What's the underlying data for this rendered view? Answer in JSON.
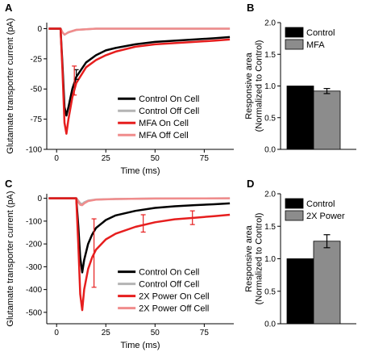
{
  "chart_data": [
    {
      "panel": "A",
      "type": "line",
      "xlabel": "Time (ms)",
      "ylabel": "Glutamate transporter current (pA)",
      "xlim": [
        -5,
        90
      ],
      "ylim": [
        -100,
        5
      ],
      "xticks": [
        "0",
        "25",
        "50",
        "75"
      ],
      "xtick_values": [
        0,
        25,
        50,
        75
      ],
      "yticks": [
        "0",
        "-25",
        "-50",
        "-75",
        "-100"
      ],
      "ytick_values": [
        0,
        -25,
        -50,
        -75,
        -100
      ],
      "legend_position": "lower-right",
      "series": [
        {
          "name": "Control On Cell",
          "color": "#000000",
          "x": [
            -4,
            2,
            3,
            4,
            5,
            6,
            8,
            10,
            15,
            20,
            25,
            30,
            40,
            50,
            60,
            70,
            80,
            88
          ],
          "y": [
            0,
            0,
            -30,
            -65,
            -72,
            -65,
            -50,
            -40,
            -28,
            -22,
            -18,
            -16,
            -13,
            -11,
            -10,
            -9,
            -8,
            -7
          ]
        },
        {
          "name": "Control Off Cell",
          "color": "#b4b4b4",
          "x": [
            -4,
            2,
            3,
            4,
            5,
            6,
            8,
            10,
            20,
            40,
            60,
            88
          ],
          "y": [
            0,
            0,
            -3,
            -5,
            -4,
            -3,
            -2,
            -1,
            0,
            0,
            0,
            0
          ]
        },
        {
          "name": "MFA On Cell",
          "color": "#e61e1e",
          "x": [
            -4,
            2,
            3,
            4,
            5,
            6,
            8,
            10,
            15,
            20,
            25,
            30,
            40,
            50,
            60,
            70,
            80,
            88
          ],
          "y": [
            0,
            0,
            -35,
            -78,
            -87,
            -75,
            -57,
            -45,
            -32,
            -26,
            -22,
            -19,
            -15,
            -13,
            -12,
            -11,
            -10,
            -9
          ]
        },
        {
          "name": "MFA Off Cell",
          "color": "#f08c8c",
          "x": [
            -4,
            2,
            3,
            4,
            5,
            6,
            8,
            10,
            20,
            40,
            60,
            88
          ],
          "y": [
            0,
            0,
            -3,
            -5,
            -4,
            -3,
            -2,
            -1,
            0,
            0,
            0,
            0
          ]
        }
      ],
      "error_bars": [
        {
          "series": "Control On Cell",
          "x": 10,
          "y": -38,
          "err": 4
        },
        {
          "series": "MFA On Cell",
          "x": 9,
          "y": -43,
          "err": 12
        }
      ]
    },
    {
      "panel": "B",
      "type": "bar",
      "categories": [
        "Control",
        "MFA"
      ],
      "values": [
        1.0,
        0.92
      ],
      "errors": [
        0,
        0.04
      ],
      "colors": [
        "#000000",
        "#8c8c8c"
      ],
      "ylabel": "Responsive area (Normalized to Control)",
      "ylim": [
        0,
        2.0
      ],
      "yticks": [
        "0.0",
        "0.5",
        "1.0",
        "1.5",
        "2.0"
      ],
      "ytick_values": [
        0,
        0.5,
        1.0,
        1.5,
        2.0
      ],
      "legend": [
        "Control",
        "MFA"
      ],
      "legend_position": "top"
    },
    {
      "panel": "C",
      "type": "line",
      "xlabel": "Time (ms)",
      "ylabel": "Glutamate transporter current (pA)",
      "xlim": [
        -5,
        90
      ],
      "ylim": [
        -550,
        20
      ],
      "xticks": [
        "0",
        "25",
        "50",
        "75"
      ],
      "xtick_values": [
        0,
        25,
        50,
        75
      ],
      "yticks": [
        "0",
        "-100",
        "-200",
        "-300",
        "-400",
        "-500"
      ],
      "ytick_values": [
        0,
        -100,
        -200,
        -300,
        -400,
        -500
      ],
      "legend_position": "lower-right",
      "series": [
        {
          "name": "Control On Cell",
          "color": "#000000",
          "x": [
            -4,
            10,
            11,
            12,
            13,
            14,
            16,
            18,
            20,
            25,
            30,
            40,
            50,
            60,
            70,
            80,
            88
          ],
          "y": [
            0,
            0,
            -120,
            -260,
            -325,
            -270,
            -200,
            -160,
            -130,
            -95,
            -75,
            -55,
            -42,
            -35,
            -30,
            -26,
            -22
          ]
        },
        {
          "name": "Control Off Cell",
          "color": "#b4b4b4",
          "x": [
            -4,
            10,
            11,
            12,
            13,
            14,
            16,
            20,
            30,
            50,
            88
          ],
          "y": [
            0,
            0,
            -10,
            -22,
            -25,
            -18,
            -10,
            -5,
            -3,
            -1,
            0
          ]
        },
        {
          "name": "2X Power On Cell",
          "color": "#e61e1e",
          "x": [
            -4,
            10,
            11,
            12,
            13,
            14,
            16,
            18,
            20,
            25,
            30,
            40,
            50,
            60,
            70,
            80,
            88
          ],
          "y": [
            0,
            0,
            -200,
            -420,
            -490,
            -400,
            -310,
            -260,
            -225,
            -180,
            -155,
            -125,
            -105,
            -92,
            -85,
            -78,
            -72
          ]
        },
        {
          "name": "2X Power Off Cell",
          "color": "#f08c8c",
          "x": [
            -4,
            10,
            11,
            12,
            13,
            14,
            16,
            20,
            30,
            50,
            88
          ],
          "y": [
            0,
            0,
            -15,
            -28,
            -30,
            -22,
            -12,
            -6,
            -3,
            -1,
            0
          ]
        }
      ],
      "error_bars": [
        {
          "series": "2X Power On Cell",
          "x": 19,
          "y": -240,
          "err": 150
        },
        {
          "series": "2X Power On Cell",
          "x": 44,
          "y": -110,
          "err": 38
        },
        {
          "series": "2X Power On Cell",
          "x": 69,
          "y": -85,
          "err": 30
        }
      ]
    },
    {
      "panel": "D",
      "type": "bar",
      "categories": [
        "Control",
        "2X Power"
      ],
      "values": [
        1.0,
        1.27
      ],
      "errors": [
        0,
        0.1
      ],
      "colors": [
        "#000000",
        "#8c8c8c"
      ],
      "ylabel": "Responsive area (Normalized to Control)",
      "ylim": [
        0,
        2.0
      ],
      "yticks": [
        "0.0",
        "0.5",
        "1.0",
        "1.5",
        "2.0"
      ],
      "ytick_values": [
        0,
        0.5,
        1.0,
        1.5,
        2.0
      ],
      "legend": [
        "Control",
        "2X Power"
      ],
      "legend_position": "top"
    }
  ]
}
